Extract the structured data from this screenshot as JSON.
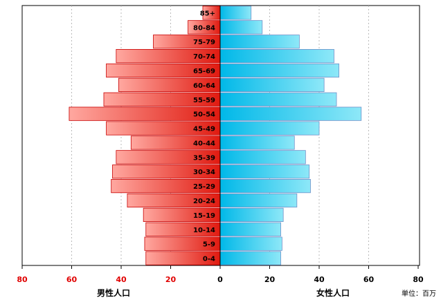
{
  "chart_data": {
    "type": "bar",
    "orientation": "horizontal-population-pyramid",
    "categories": [
      "85+",
      "80-84",
      "75-79",
      "70-74",
      "65-69",
      "60-64",
      "55-59",
      "50-54",
      "45-49",
      "40-44",
      "35-39",
      "30-34",
      "25-29",
      "20-24",
      "15-19",
      "10-14",
      "5-9",
      "0-4"
    ],
    "series": [
      {
        "name": "男性人口",
        "side": "left",
        "values": [
          7,
          13,
          27,
          42,
          46,
          41,
          47,
          61,
          46,
          36,
          42,
          43.5,
          44,
          37.5,
          31,
          30,
          30.5,
          30
        ]
      },
      {
        "name": "女性人口",
        "side": "right",
        "values": [
          12.5,
          17,
          32,
          46,
          48,
          42,
          47,
          57,
          40,
          30,
          34.5,
          36,
          36.5,
          31,
          25.5,
          24.5,
          25,
          24.5
        ]
      }
    ],
    "xlim_left": [
      0,
      80
    ],
    "xlim_right": [
      0,
      80
    ],
    "xticks_left": [
      "80",
      "60",
      "40",
      "20"
    ],
    "xticks_right": [
      "0",
      "20",
      "40",
      "60",
      "80"
    ],
    "xlabel_left": "男性人口",
    "xlabel_right": "女性人口",
    "unit_note": "単位：百万",
    "colors": {
      "male_dark": "#e01a10",
      "male_light": "#ffa8a0",
      "male_edge": "#c80000",
      "female_dark": "#00b8e8",
      "female_light": "#8ee8f8",
      "female_edge": "#7090c8",
      "left_tick_color": "#e00000",
      "right_tick_color": "#000000"
    }
  }
}
